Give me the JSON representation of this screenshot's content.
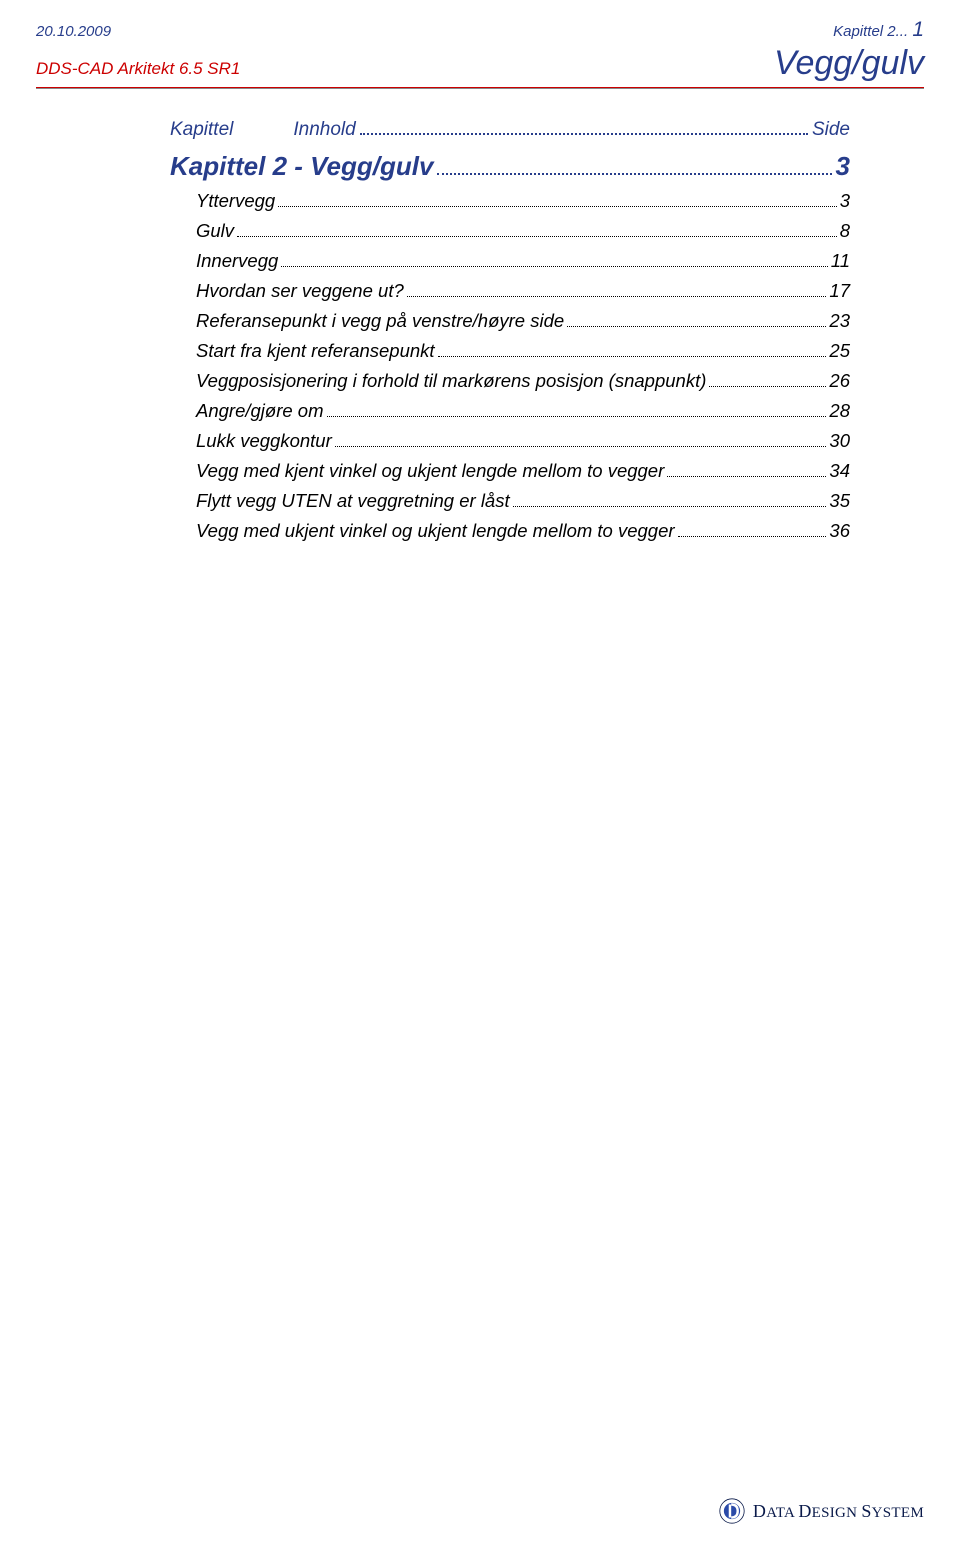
{
  "header": {
    "date": "20.10.2009",
    "product": "DDS-CAD Arkitekt  6.5  SR1",
    "chapter_label": "Kapittel 2...",
    "page_number": "1",
    "section_title": "Vegg/gulv"
  },
  "toc": {
    "header_left": "Kapittel",
    "header_mid": "Innhold",
    "header_right": "Side",
    "title": "Kapittel 2 - Vegg/gulv",
    "title_page": "3",
    "entries": [
      {
        "label": "Yttervegg",
        "page": "3"
      },
      {
        "label": "Gulv",
        "page": "8"
      },
      {
        "label": "Innervegg",
        "page": "11"
      },
      {
        "label": "Hvordan ser veggene ut?",
        "page": "17"
      },
      {
        "label": "Referansepunkt i vegg på venstre/høyre side",
        "page": "23"
      },
      {
        "label": "Start fra kjent referansepunkt",
        "page": "25"
      },
      {
        "label": "Veggposisjonering i forhold til markørens posisjon (snappunkt)",
        "page": "26"
      },
      {
        "label": "Angre/gjøre om",
        "page": "28"
      },
      {
        "label": "Lukk veggkontur",
        "page": "30"
      },
      {
        "label": "Vegg med kjent vinkel og ukjent lengde mellom to vegger",
        "page": "34"
      },
      {
        "label": "Flytt vegg UTEN at veggretning er låst",
        "page": "35"
      },
      {
        "label": "Vegg med ukjent vinkel og ukjent lengde mellom to vegger",
        "page": "36"
      }
    ]
  },
  "footer": {
    "brand_main": "D",
    "brand_rest1": "ATA ",
    "brand_main2": "D",
    "brand_rest2": "ESIGN ",
    "brand_main3": "S",
    "brand_rest3": "YSTEM"
  },
  "colors": {
    "brand_blue": "#273d8b",
    "brand_red": "#cc0000",
    "text": "#000000",
    "rule_gray": "#888888",
    "background": "#ffffff"
  }
}
